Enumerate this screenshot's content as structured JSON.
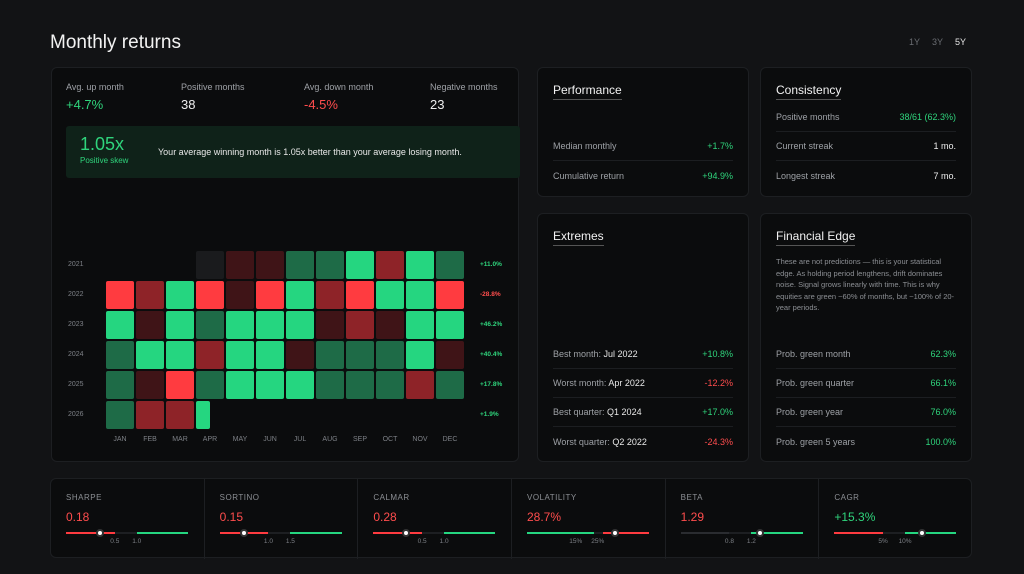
{
  "page": {
    "title": "Monthly returns"
  },
  "periods": [
    "1Y",
    "3Y",
    "5Y"
  ],
  "active_period": "5Y",
  "summary": {
    "avg_up": {
      "label": "Avg. up month",
      "value": "+4.7%"
    },
    "positive": {
      "label": "Positive months",
      "value": "38"
    },
    "avg_down": {
      "label": "Avg. down month",
      "value": "-4.5%"
    },
    "negative": {
      "label": "Negative months",
      "value": "23"
    }
  },
  "skew": {
    "value": "1.05x",
    "label": "Positive skew",
    "message": "Your average winning month is 1.05x better than your average losing month."
  },
  "heatmap": {
    "months": [
      "JAN",
      "FEB",
      "MAR",
      "APR",
      "MAY",
      "JUN",
      "JUL",
      "AUG",
      "SEP",
      "OCT",
      "NOV",
      "DEC"
    ],
    "years": [
      "2021",
      "2022",
      "2023",
      "2024",
      "2025",
      "2026"
    ],
    "year_totals": [
      "+11.0%",
      "-28.8%",
      "+46.2%",
      "+40.4%",
      "+17.8%",
      "+1.9%"
    ],
    "colors": {
      "strong_pos": "#25d680",
      "mid_pos": "#1e6b47",
      "strong_neg": "#ff3b40",
      "mid_neg": "#8e2328",
      "dark_neg": "#3f1417",
      "empty": "#1a1b1d"
    },
    "cells": [
      [
        "",
        "",
        "",
        "e",
        "dn",
        "dn",
        "mp",
        "mp",
        "sp",
        "mn",
        "sp",
        "mp"
      ],
      [
        "sn",
        "mn",
        "sp",
        "sn",
        "dn",
        "sn",
        "sp",
        "mn",
        "sn",
        "sp",
        "sp",
        "sn"
      ],
      [
        "sp",
        "dn",
        "sp",
        "mp",
        "sp",
        "sp",
        "sp",
        "dn",
        "mn",
        "dn",
        "sp",
        "sp"
      ],
      [
        "mp",
        "sp",
        "sp",
        "mn",
        "sp",
        "sp",
        "dn",
        "mp",
        "mp",
        "mp",
        "sp",
        "dn"
      ],
      [
        "mp",
        "dn",
        "sn",
        "mp",
        "sp",
        "sp",
        "sp",
        "mp",
        "mp",
        "mp",
        "mn",
        "mp"
      ],
      [
        "mp",
        "mn",
        "mn",
        "sp",
        "",
        "",
        "",
        "",
        "",
        "",
        "",
        ""
      ]
    ]
  },
  "performance": {
    "title": "Performance",
    "rows": [
      {
        "label": "Median monthly",
        "value": "+1.7%"
      },
      {
        "label": "Cumulative return",
        "value": "+94.9%"
      }
    ]
  },
  "consistency": {
    "title": "Consistency",
    "rows": [
      {
        "label": "Positive months",
        "value": "38/61 (62.3%)"
      },
      {
        "label": "Current streak",
        "value": "1 mo."
      },
      {
        "label": "Longest streak",
        "value": "7 mo."
      }
    ]
  },
  "extremes": {
    "title": "Extremes",
    "rows": [
      {
        "label": "Best month:",
        "period": "Jul 2022",
        "value": "+10.8%"
      },
      {
        "label": "Worst month:",
        "period": "Apr 2022",
        "value": "-12.2%"
      },
      {
        "label": "Best quarter:",
        "period": "Q1 2024",
        "value": "+17.0%"
      },
      {
        "label": "Worst quarter:",
        "period": "Q2 2022",
        "value": "-24.3%"
      }
    ]
  },
  "edge": {
    "title": "Financial Edge",
    "text": "These are not predictions — this is your statistical edge. As holding period lengthens, drift dominates noise. Signal grows linearly with time. This is why equities are green ~60% of months, but ~100% of 20-year periods.",
    "rows": [
      {
        "label": "Prob. green month",
        "value": "62.3%"
      },
      {
        "label": "Prob. green quarter",
        "value": "66.1%"
      },
      {
        "label": "Prob. green year",
        "value": "76.0%"
      },
      {
        "label": "Prob. green 5 years",
        "value": "100.0%"
      }
    ]
  },
  "metrics": [
    {
      "name": "SHARPE",
      "value": "0.18",
      "tone": "neg",
      "ticks": [
        "0.5",
        "1.0"
      ],
      "marker": 0.28
    },
    {
      "name": "SORTINO",
      "value": "0.15",
      "tone": "neg",
      "ticks": [
        "1.0",
        "1.5"
      ],
      "marker": 0.2
    },
    {
      "name": "CALMAR",
      "value": "0.28",
      "tone": "neg",
      "ticks": [
        "0.5",
        "1.0"
      ],
      "marker": 0.27
    },
    {
      "name": "VOLATILITY",
      "value": "28.7%",
      "tone": "neg",
      "ticks": [
        "15%",
        "25%"
      ],
      "marker": 0.72
    },
    {
      "name": "BETA",
      "value": "1.29",
      "tone": "neg",
      "ticks": [
        "0.8",
        "1.2"
      ],
      "marker": 0.65
    },
    {
      "name": "CAGR",
      "value": "+15.3%",
      "tone": "pos",
      "ticks": [
        "5%",
        "10%"
      ],
      "marker": 0.72
    }
  ]
}
